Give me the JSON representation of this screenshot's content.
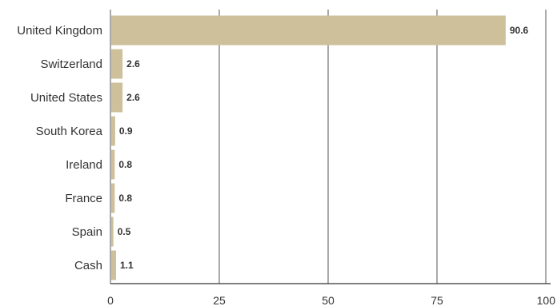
{
  "chart_data": {
    "type": "bar",
    "orientation": "horizontal",
    "categories": [
      "United Kingdom",
      "Switzerland",
      "United States",
      "South Korea",
      "Ireland",
      "France",
      "Spain",
      "Cash"
    ],
    "values": [
      90.6,
      2.6,
      2.6,
      0.9,
      0.8,
      0.8,
      0.5,
      1.1
    ],
    "value_labels": [
      "90.6",
      "2.6",
      "2.6",
      "0.9",
      "0.8",
      "0.8",
      "0.5",
      "1.1"
    ],
    "xlim": [
      0,
      100
    ],
    "x_ticks": [
      0,
      25,
      50,
      75,
      100
    ],
    "x_tick_labels": [
      "0",
      "25",
      "50",
      "75",
      "100"
    ],
    "grid": true,
    "bar_color": "#cdc09a"
  }
}
